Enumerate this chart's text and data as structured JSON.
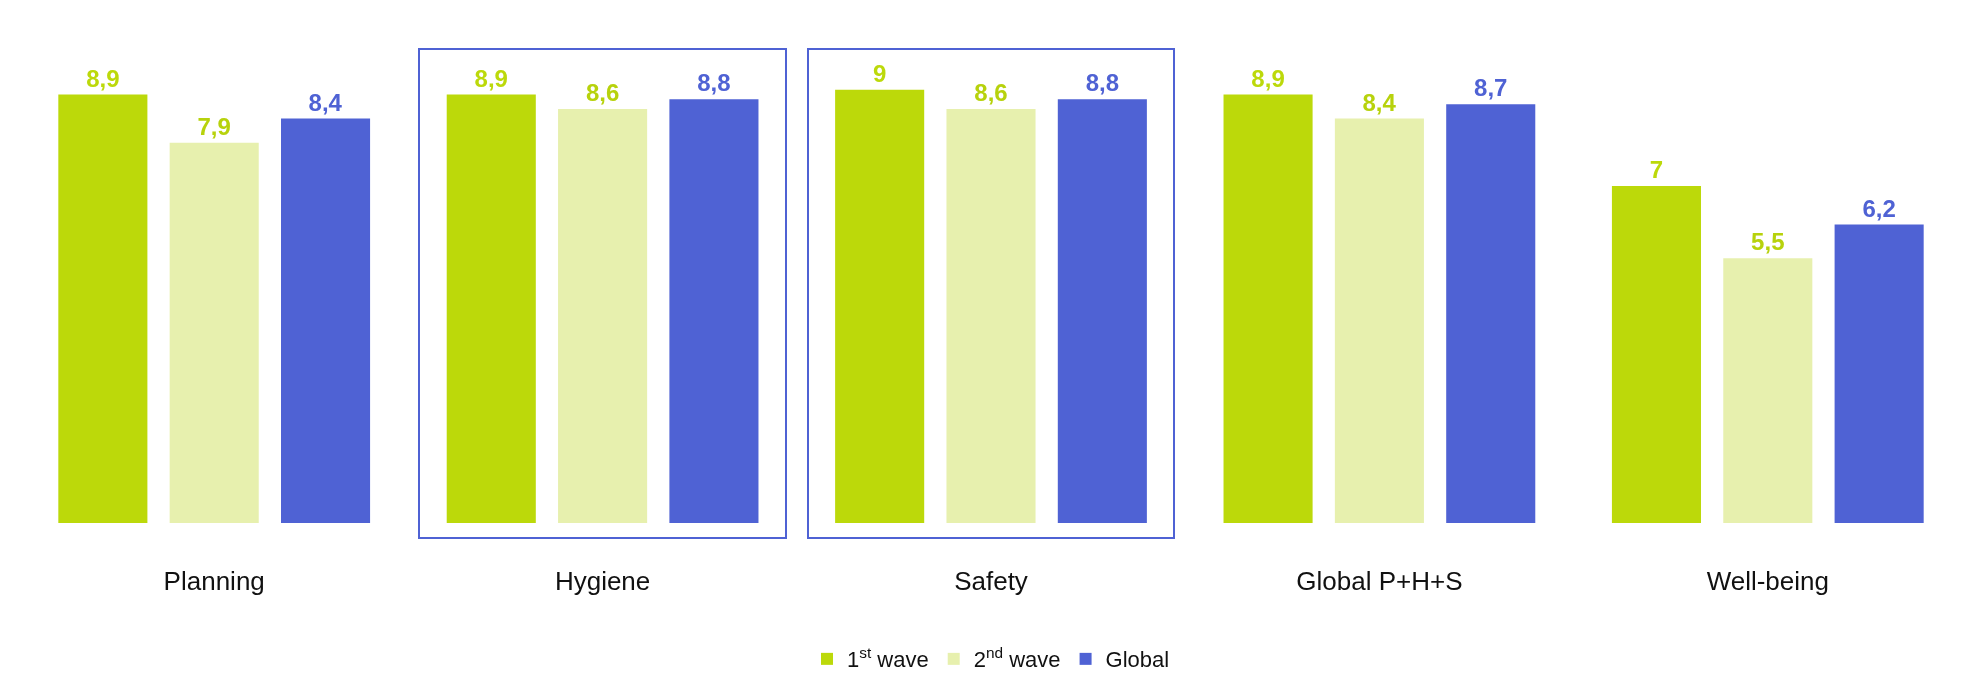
{
  "chart_data": {
    "type": "bar",
    "categories": [
      "Planning",
      "Hygiene",
      "Safety",
      "Global P+H+S",
      "Well-being"
    ],
    "series": [
      {
        "name": "1$^{st}$ wave",
        "color": "#bcd90a",
        "values": [
          8.9,
          8.9,
          9,
          8.9,
          7
        ],
        "value_labels": [
          "8,9",
          "8,9",
          "9",
          "8,9",
          "7"
        ]
      },
      {
        "name": "2$^{nd}$ wave",
        "color": "#e7f0ae",
        "values": [
          7.9,
          8.6,
          8.6,
          8.4,
          5.5
        ],
        "value_labels": [
          "7,9",
          "8,6",
          "8,6",
          "8,4",
          "5,5"
        ]
      },
      {
        "name": "Global",
        "color": "#4f62d4",
        "values": [
          8.4,
          8.8,
          8.8,
          8.7,
          6.2
        ],
        "value_labels": [
          "8,4",
          "8,8",
          "8,8",
          "8,7",
          "6,2"
        ]
      }
    ],
    "legend": "bottom",
    "grid": false,
    "tick_labels": "x"
  }
}
